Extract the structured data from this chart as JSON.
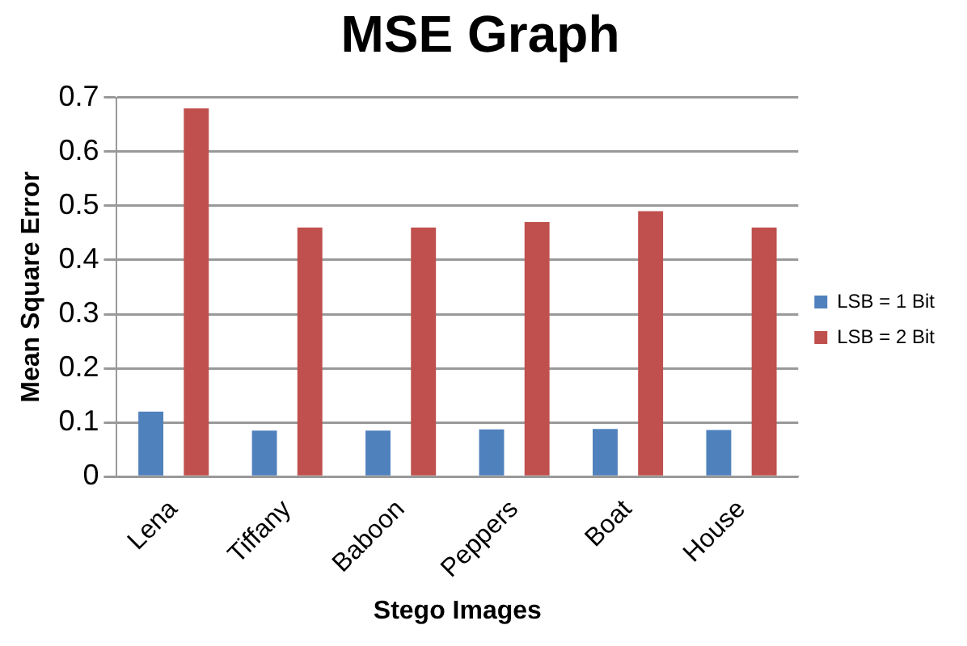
{
  "chart_data": {
    "type": "bar",
    "title": "MSE Graph",
    "xlabel": "Stego Images",
    "ylabel": "Mean Square Error",
    "categories": [
      "Lena",
      "Tiffany",
      "Baboon",
      "Peppers",
      "Boat",
      "House"
    ],
    "series": [
      {
        "name": "LSB = 1 Bit",
        "color": "#4f81bd",
        "values": [
          0.12,
          0.085,
          0.085,
          0.087,
          0.088,
          0.086
        ]
      },
      {
        "name": "LSB = 2 Bit",
        "color": "#c0504d",
        "values": [
          0.68,
          0.46,
          0.46,
          0.47,
          0.49,
          0.46
        ]
      }
    ],
    "ylim": [
      0,
      0.7
    ],
    "yticks": [
      0,
      0.1,
      0.2,
      0.3,
      0.4,
      0.5,
      0.6,
      0.7
    ],
    "grid": "y",
    "legend": "right"
  }
}
